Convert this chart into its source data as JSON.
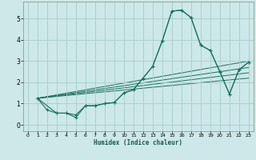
{
  "xlabel": "Humidex (Indice chaleur)",
  "background_color": "#cce8e8",
  "grid_color": "#aacccc",
  "line_color": "#1a7060",
  "xlim": [
    -0.5,
    23.5
  ],
  "ylim": [
    -0.3,
    5.8
  ],
  "yticks": [
    0,
    1,
    2,
    3,
    4,
    5
  ],
  "xticks": [
    0,
    1,
    2,
    3,
    4,
    5,
    6,
    7,
    8,
    9,
    10,
    11,
    12,
    13,
    14,
    15,
    16,
    17,
    18,
    19,
    20,
    21,
    22,
    23
  ],
  "line1": [
    [
      1,
      1.25
    ],
    [
      2,
      0.7
    ],
    [
      3,
      0.55
    ],
    [
      4,
      0.55
    ],
    [
      5,
      0.35
    ],
    [
      6,
      0.9
    ],
    [
      7,
      0.9
    ],
    [
      8,
      1.0
    ],
    [
      9,
      1.05
    ],
    [
      10,
      1.5
    ],
    [
      11,
      1.65
    ],
    [
      12,
      2.2
    ],
    [
      13,
      2.75
    ],
    [
      14,
      3.95
    ],
    [
      15,
      5.35
    ],
    [
      16,
      5.4
    ],
    [
      17,
      5.05
    ],
    [
      18,
      3.75
    ],
    [
      19,
      3.5
    ],
    [
      20,
      2.5
    ],
    [
      21,
      1.45
    ],
    [
      22,
      2.6
    ],
    [
      23,
      2.95
    ]
  ],
  "line2": [
    [
      1,
      1.25
    ],
    [
      3,
      0.55
    ],
    [
      4,
      0.55
    ],
    [
      5,
      0.47
    ],
    [
      6,
      0.9
    ],
    [
      7,
      0.9
    ],
    [
      8,
      1.0
    ],
    [
      9,
      1.05
    ],
    [
      10,
      1.5
    ],
    [
      11,
      1.65
    ],
    [
      12,
      2.2
    ],
    [
      13,
      2.75
    ],
    [
      14,
      3.95
    ],
    [
      15,
      5.35
    ],
    [
      16,
      5.4
    ],
    [
      17,
      5.05
    ],
    [
      18,
      3.75
    ],
    [
      19,
      3.5
    ],
    [
      20,
      2.5
    ],
    [
      21,
      1.45
    ],
    [
      22,
      2.6
    ],
    [
      23,
      2.95
    ]
  ],
  "straight_lines": [
    [
      [
        1,
        1.25
      ],
      [
        23,
        3.0
      ]
    ],
    [
      [
        1,
        1.25
      ],
      [
        23,
        2.7
      ]
    ],
    [
      [
        1,
        1.25
      ],
      [
        23,
        2.45
      ]
    ],
    [
      [
        1,
        1.25
      ],
      [
        23,
        2.2
      ]
    ]
  ]
}
